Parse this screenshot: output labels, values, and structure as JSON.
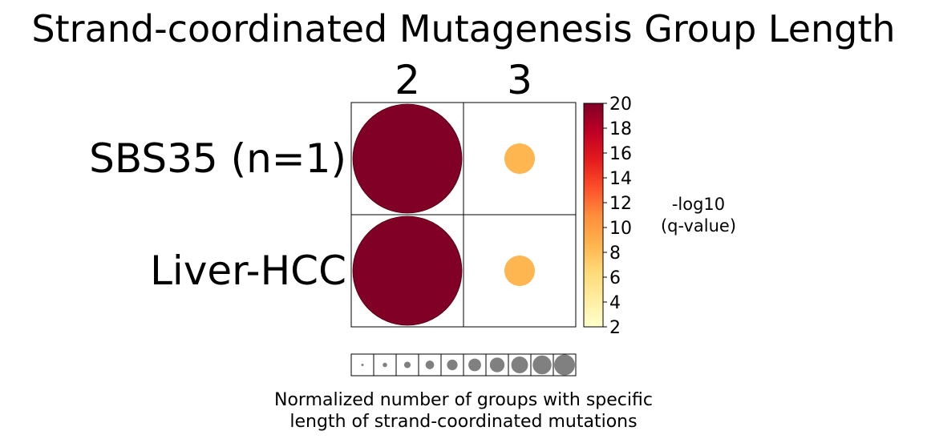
{
  "chart_data": {
    "type": "scatter",
    "title": "Strand-coordinated Mutagenesis Group Length",
    "columns": [
      "2",
      "3"
    ],
    "rows": [
      "SBS35 (n=1)",
      "Liver-HCC"
    ],
    "size_fraction": [
      [
        1.0,
        0.28
      ],
      [
        1.0,
        0.28
      ]
    ],
    "neg_log10_q": [
      [
        20,
        8.5
      ],
      [
        20,
        8.5
      ]
    ],
    "colorbar": {
      "label_line1": "-log10",
      "label_line2": "(q-value)",
      "min": 2,
      "max": 20,
      "ticks": [
        "2",
        "4",
        "6",
        "8",
        "10",
        "12",
        "14",
        "16",
        "18",
        "20"
      ],
      "colormap": "YlOrRd",
      "stops": [
        "#ffffcc",
        "#ffeda0",
        "#fed976",
        "#feb24c",
        "#fd8d3c",
        "#fc4e2a",
        "#e31a1c",
        "#bd0026",
        "#800026"
      ]
    },
    "size_legend": {
      "levels": [
        0.1,
        0.2,
        0.3,
        0.4,
        0.5,
        0.6,
        0.7,
        0.8,
        0.9,
        1.0
      ],
      "color": "#808080",
      "label_line1": "Normalized number of groups with specific",
      "label_line2": "length of strand-coordinated mutations"
    }
  }
}
